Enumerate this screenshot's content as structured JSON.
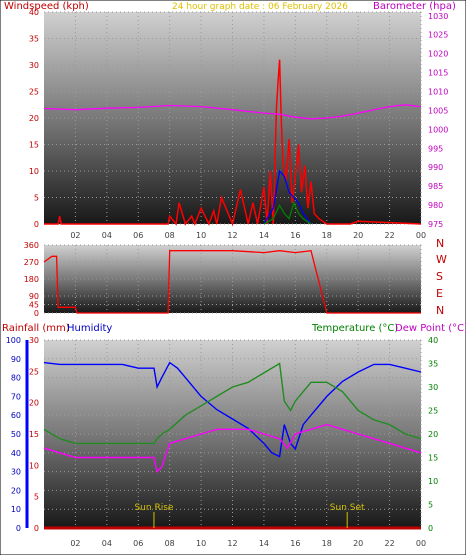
{
  "colors": {
    "wind": "#ff0000",
    "gust": "#0000ff",
    "avg": "#008000",
    "baro": "#ff00ff",
    "temp": "#228b22",
    "dew": "#ff00ff",
    "humid": "#0000ff",
    "rain": "#c00000",
    "title": "#e0c000",
    "sun": "#d4c000",
    "ticks": "#808080"
  },
  "header": {
    "windspeed_label": "Windspeed (kph)",
    "title": "24 hour graph date : 06 February 2026",
    "barometer_label": "Barometer (hpa)"
  },
  "compass": [
    "N",
    "W",
    "S",
    "E",
    "N"
  ],
  "lower_header": {
    "rain_label": "Rainfall (mm)",
    "humidity_label": "Humidity",
    "temperature_label": "Temperature (°C)",
    "dewpoint_label": "Dew Point (°C)"
  },
  "sun": {
    "rise_label": "Sun Rise",
    "rise_hour": 7.0,
    "set_label": "Sun Set",
    "set_hour": 19.3
  },
  "chart_data": [
    {
      "type": "line",
      "name": "wind_and_barometer",
      "x_hours": [
        0,
        24
      ],
      "x_ticks": [
        "02",
        "04",
        "06",
        "08",
        "10",
        "12",
        "14",
        "16",
        "18",
        "20",
        "22",
        "00"
      ],
      "y_left_ticks": [
        0,
        5,
        10,
        15,
        20,
        25,
        30,
        35,
        40
      ],
      "y_right_ticks": [
        975,
        980,
        985,
        990,
        995,
        1000,
        1005,
        1010,
        1015,
        1020,
        1025,
        1030
      ],
      "ylim_left": [
        0,
        40
      ],
      "ylim_right": [
        975,
        1031
      ],
      "series": [
        {
          "key": "wind",
          "x": [
            0,
            0.9,
            1,
            1.1,
            2,
            7.9,
            8,
            8.4,
            8.6,
            9,
            9.4,
            9.6,
            10,
            10.5,
            10.8,
            11,
            11.3,
            12,
            12.5,
            13,
            13.3,
            13.6,
            14,
            14.2,
            14.4,
            14.6,
            14.8,
            14.9,
            15,
            15.1,
            15.2,
            15.4,
            15.6,
            15.8,
            16,
            16.2,
            16.4,
            16.6,
            16.8,
            17,
            17.2,
            17.5,
            18,
            19.5,
            20,
            24
          ],
          "y": [
            0,
            0,
            1.5,
            0,
            0,
            0,
            1.5,
            0,
            4,
            0,
            1.5,
            0,
            3,
            0,
            2.5,
            0,
            5,
            0,
            6.5,
            0,
            4,
            0,
            7,
            0,
            10,
            0,
            22,
            27,
            31,
            20,
            12,
            8,
            16,
            4,
            9,
            15,
            6,
            11,
            3,
            8,
            2,
            1,
            0,
            0,
            0.5,
            0
          ]
        },
        {
          "key": "gust",
          "x": [
            14,
            14.6,
            15,
            15.3,
            15.6,
            15.9,
            16.2,
            16.5,
            17
          ],
          "y": [
            0,
            3,
            10,
            9,
            6,
            5,
            4,
            2,
            0
          ]
        },
        {
          "key": "avg",
          "x": [
            14,
            14.6,
            15,
            15.3,
            15.6,
            15.9,
            16.2,
            16.5,
            17
          ],
          "y": [
            0,
            1,
            3.5,
            2,
            1,
            4,
            2,
            1,
            0
          ]
        },
        {
          "key": "baro",
          "x": [
            0,
            2,
            4,
            6,
            8,
            10,
            12,
            14,
            15,
            16,
            17,
            18,
            19,
            20,
            21,
            22,
            23,
            24
          ],
          "y": [
            1005.5,
            1005.2,
            1005.6,
            1005.8,
            1006.3,
            1006,
            1005.2,
            1004.3,
            1004,
            1003.2,
            1002.8,
            1003,
            1003.5,
            1004.3,
            1005.2,
            1006,
            1006.5,
            1006
          ]
        }
      ]
    },
    {
      "type": "line",
      "name": "wind_direction",
      "x_hours": [
        0,
        24
      ],
      "y_ticks": [
        0,
        45,
        90,
        180,
        270,
        360
      ],
      "ylim": [
        0,
        360
      ],
      "series": [
        {
          "key": "direction",
          "x": [
            0,
            0.5,
            0.8,
            0.9,
            1,
            2,
            2.1,
            7.9,
            8,
            12,
            14,
            15,
            16,
            17,
            18,
            20,
            24
          ],
          "y": [
            270,
            300,
            300,
            30,
            30,
            30,
            0,
            0,
            330,
            330,
            320,
            330,
            320,
            330,
            0,
            0,
            0
          ]
        }
      ]
    },
    {
      "type": "line",
      "name": "temperature_humidity_rain",
      "x_hours": [
        0,
        24
      ],
      "x_ticks": [
        "02",
        "04",
        "06",
        "08",
        "10",
        "12",
        "14",
        "16",
        "18",
        "20",
        "22",
        "00"
      ],
      "humidity_ticks": [
        0,
        10,
        20,
        30,
        40,
        50,
        60,
        70,
        80,
        90,
        100
      ],
      "rain_ticks": [
        0,
        5,
        10,
        15,
        20,
        25,
        30
      ],
      "temp_ticks": [
        0,
        5,
        10,
        15,
        20,
        25,
        30,
        35,
        40
      ],
      "ylim_humidity": [
        0,
        100
      ],
      "ylim_temp": [
        0,
        40
      ],
      "series": [
        {
          "key": "humid",
          "x": [
            0,
            1,
            2,
            3,
            4,
            5,
            6,
            7,
            7.2,
            7.5,
            8,
            8.5,
            9,
            10,
            11,
            12,
            13,
            14,
            14.5,
            15,
            15.3,
            15.7,
            16,
            16.5,
            17,
            18,
            19,
            20,
            21,
            22,
            23,
            24
          ],
          "y": [
            88,
            87,
            87,
            87,
            87,
            87,
            85,
            85,
            75,
            80,
            88,
            85,
            80,
            70,
            63,
            58,
            53,
            45,
            40,
            38,
            55,
            45,
            42,
            55,
            60,
            70,
            78,
            83,
            87,
            87,
            85,
            83
          ]
        },
        {
          "key": "temp",
          "x": [
            0,
            1,
            2,
            3,
            4,
            5,
            6,
            7,
            7.2,
            7.5,
            8,
            9,
            10,
            11,
            12,
            13,
            14,
            15,
            15.3,
            15.7,
            16,
            16.5,
            17,
            18,
            19,
            20,
            21,
            22,
            23,
            24
          ],
          "y": [
            21,
            19,
            18,
            18,
            18,
            18,
            18,
            18,
            19,
            20,
            21,
            24,
            26,
            28,
            30,
            31,
            33,
            35,
            27,
            25,
            27,
            29,
            31,
            31,
            29,
            25,
            23,
            22,
            20,
            19
          ]
        },
        {
          "key": "dew",
          "x": [
            0,
            1,
            2,
            3,
            4,
            5,
            6,
            7,
            7.2,
            7.5,
            8,
            9,
            10,
            11,
            12,
            13,
            14,
            15,
            15.5,
            16,
            17,
            18,
            19,
            20,
            21,
            22,
            23,
            24
          ],
          "y": [
            17,
            16,
            15,
            15,
            15,
            15,
            15,
            15,
            12,
            13,
            18,
            19,
            20,
            21,
            21,
            21,
            20,
            19,
            17,
            20,
            21,
            22,
            21,
            20,
            19,
            18,
            17,
            16
          ]
        },
        {
          "key": "rain",
          "x": [
            0,
            24
          ],
          "y": [
            0,
            0
          ]
        }
      ]
    }
  ]
}
